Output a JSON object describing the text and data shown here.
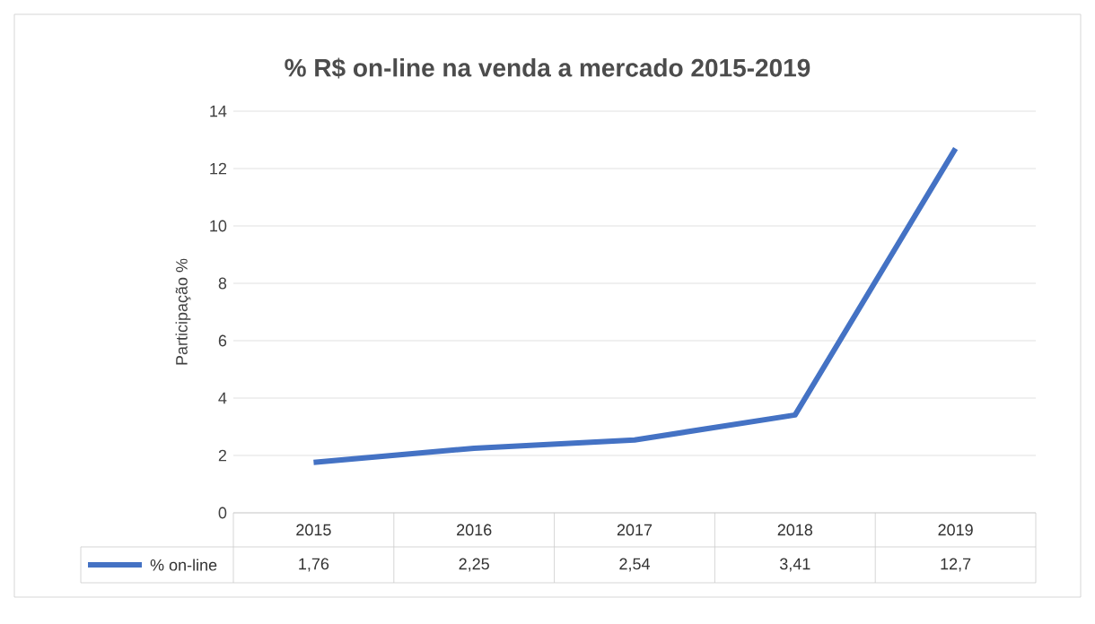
{
  "chart_data": {
    "type": "line",
    "title": "% R$ on-line na venda a mercado 2015-2019",
    "ylabel": "Participação %",
    "categories": [
      "2015",
      "2016",
      "2017",
      "2018",
      "2019"
    ],
    "series": [
      {
        "name": "% on-line",
        "color": "#4472c4",
        "values": [
          1.76,
          2.25,
          2.54,
          3.41,
          12.7
        ],
        "value_labels": [
          "1,76",
          "2,25",
          "2,54",
          "3,41",
          "12,7"
        ]
      }
    ],
    "ylim": [
      0,
      14
    ],
    "yticks": [
      0,
      2,
      4,
      6,
      8,
      10,
      12,
      14
    ],
    "grid": "y",
    "legend": "bottom"
  }
}
